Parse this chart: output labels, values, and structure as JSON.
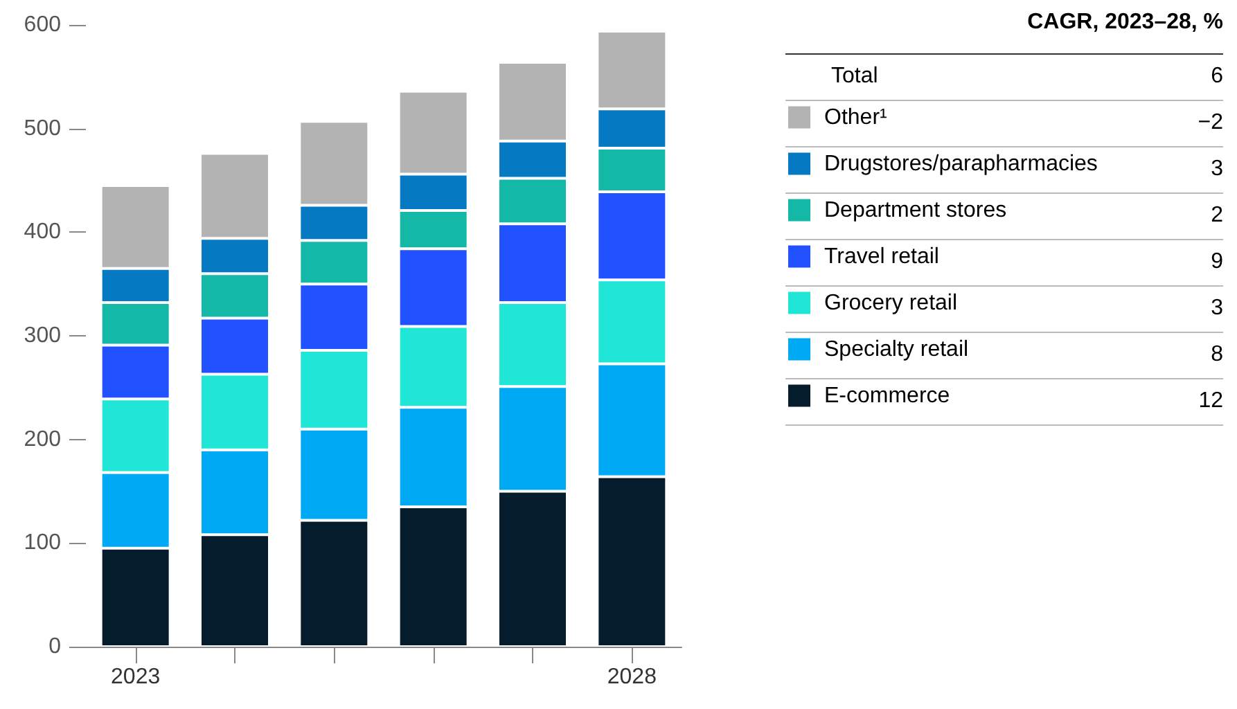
{
  "chart_data": {
    "type": "bar",
    "stacked": true,
    "legend": "right",
    "legend_title": "CAGR, 2023–28, %",
    "categories": [
      "2023",
      null,
      null,
      null,
      null,
      "2028"
    ],
    "ylim": [
      0,
      600
    ],
    "yticks": [
      0,
      100,
      200,
      300,
      400,
      500,
      600
    ],
    "grid": false,
    "annotations": [
      "Total",
      "6",
      "−2",
      "3",
      "2",
      "9",
      "3",
      "8",
      "12"
    ],
    "series": [
      {
        "name": "E-commerce",
        "color": "#051c2c",
        "values": [
          95,
          108,
          122,
          135,
          150,
          164
        ]
      },
      {
        "name": "Specialty retail",
        "color": "#00a9f4",
        "values": [
          73,
          82,
          88,
          96,
          101,
          109
        ]
      },
      {
        "name": "Grocery retail",
        "color": "#1fe6d6",
        "values": [
          71,
          73,
          76,
          78,
          81,
          81
        ]
      },
      {
        "name": "Travel retail",
        "color": "#2251ff",
        "values": [
          52,
          54,
          64,
          75,
          76,
          85
        ]
      },
      {
        "name": "Department stores",
        "color": "#14b8a6",
        "values": [
          41,
          43,
          42,
          37,
          44,
          42
        ]
      },
      {
        "name": "Drugstores/parapharmacies",
        "color": "#0679c3",
        "values": [
          33,
          34,
          34,
          35,
          36,
          38
        ]
      },
      {
        "name": "Other¹",
        "color": "#b3b3b3",
        "values": [
          80,
          82,
          81,
          80,
          76,
          75
        ]
      }
    ]
  }
}
